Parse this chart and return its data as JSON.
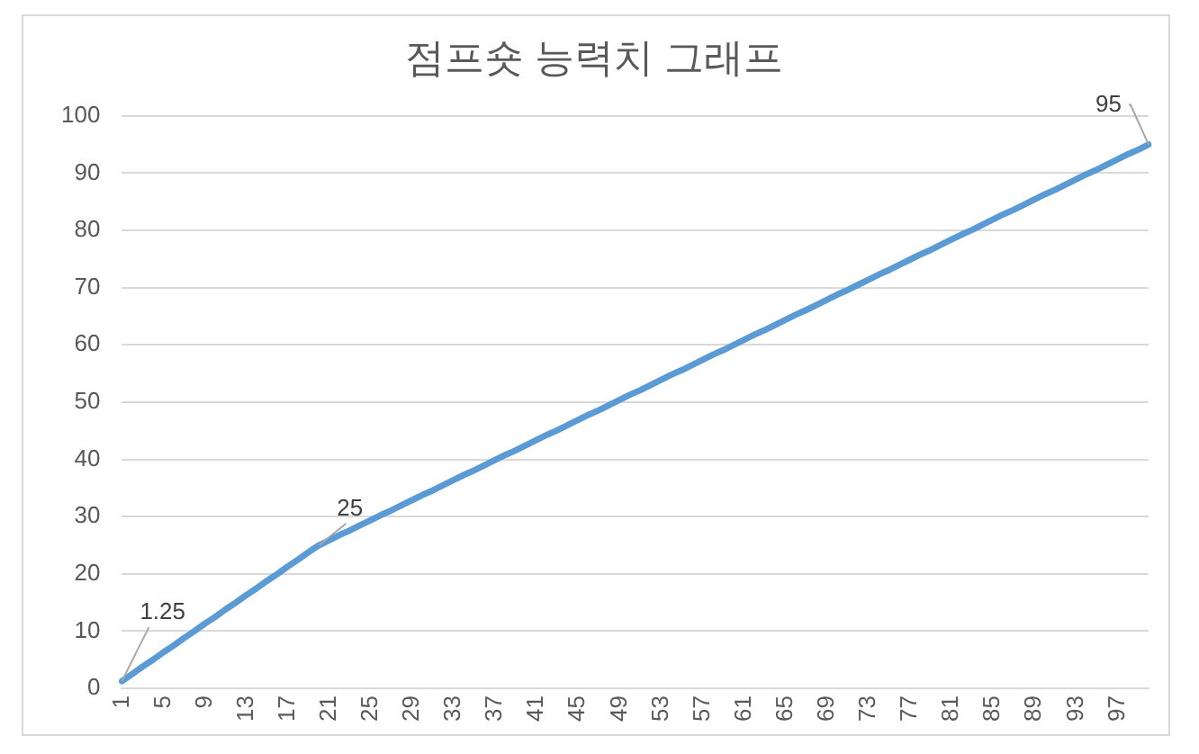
{
  "chart_data": {
    "type": "line",
    "title": "점프숏 능력치 그래프",
    "categories": [
      "1",
      null,
      null,
      null,
      "5",
      null,
      null,
      null,
      "9",
      null,
      null,
      null,
      "13",
      null,
      null,
      null,
      "17",
      null,
      null,
      null,
      "21",
      null,
      null,
      null,
      "25",
      null,
      null,
      null,
      "29",
      null,
      null,
      null,
      "33",
      null,
      null,
      null,
      "37",
      null,
      null,
      null,
      "41",
      null,
      null,
      null,
      "45",
      null,
      null,
      null,
      "49",
      null,
      null,
      null,
      "53",
      null,
      null,
      null,
      "57",
      null,
      null,
      null,
      "61",
      null,
      null,
      null,
      "65",
      null,
      null,
      null,
      "69",
      null,
      null,
      null,
      "73",
      null,
      null,
      null,
      "77",
      null,
      null,
      null,
      "81",
      null,
      null,
      null,
      "85",
      null,
      null,
      null,
      "89",
      null,
      null,
      null,
      "93",
      null,
      null,
      null,
      "97",
      null,
      null,
      null
    ],
    "series": [
      {
        "color": "#5b9bd5",
        "values": [
          1.25,
          2.5,
          3.8,
          5,
          6.3,
          7.5,
          8.8,
          10,
          11.3,
          12.5,
          13.8,
          15,
          16.3,
          17.5,
          18.8,
          20,
          21.3,
          22.5,
          23.8,
          25,
          25.9,
          26.8,
          27.6,
          28.5,
          29.4,
          30.3,
          31.1,
          32,
          32.9,
          33.8,
          34.6,
          35.5,
          36.4,
          37.3,
          38.1,
          39,
          39.9,
          40.8,
          41.6,
          42.5,
          43.4,
          44.3,
          45.1,
          46,
          46.9,
          47.8,
          48.6,
          49.5,
          50.4,
          51.3,
          52.1,
          53,
          53.9,
          54.8,
          55.6,
          56.5,
          57.4,
          58.3,
          59.1,
          60,
          60.9,
          61.8,
          62.6,
          63.5,
          64.4,
          65.3,
          66.1,
          67,
          67.9,
          68.8,
          69.6,
          70.5,
          71.4,
          72.3,
          73.1,
          74,
          74.9,
          75.8,
          76.6,
          77.5,
          78.4,
          79.3,
          80.1,
          81,
          81.9,
          82.8,
          83.6,
          84.5,
          85.4,
          86.3,
          87.1,
          88,
          88.9,
          89.8,
          90.6,
          91.5,
          92.4,
          93.3,
          94.1,
          95
        ],
        "value_labels": [
          "1.25",
          null,
          null,
          null,
          null,
          null,
          null,
          null,
          null,
          null,
          null,
          null,
          null,
          null,
          null,
          null,
          null,
          null,
          null,
          "25",
          null,
          null,
          null,
          null,
          null,
          null,
          null,
          null,
          null,
          null,
          null,
          null,
          null,
          null,
          null,
          null,
          null,
          null,
          null,
          null,
          null,
          null,
          null,
          null,
          null,
          null,
          null,
          null,
          null,
          null,
          null,
          null,
          null,
          null,
          null,
          null,
          null,
          null,
          null,
          null,
          null,
          null,
          null,
          null,
          null,
          null,
          null,
          null,
          null,
          null,
          null,
          null,
          null,
          null,
          null,
          null,
          null,
          null,
          null,
          null,
          null,
          null,
          null,
          null,
          null,
          null,
          null,
          null,
          null,
          null,
          null,
          null,
          null,
          null,
          null,
          null,
          null,
          null,
          null,
          "95"
        ]
      }
    ],
    "ylim": [
      0,
      100
    ],
    "yticks": [
      0,
      10,
      20,
      30,
      40,
      50,
      60,
      70,
      80,
      90,
      100
    ],
    "grid": "y",
    "legend": false,
    "marker": "none",
    "line_style": "solid"
  }
}
